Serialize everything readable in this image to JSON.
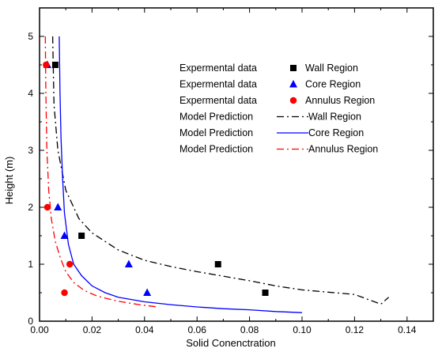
{
  "chart_data": {
    "type": "scatter",
    "xlabel": "Solid Conenctration",
    "ylabel": "Height (m)",
    "xlim": [
      0,
      0.15
    ],
    "ylim": [
      0,
      5.5
    ],
    "x_ticks": [
      "0.00",
      "0.02",
      "0.04",
      "0.06",
      "0.08",
      "0.10",
      "0.12",
      "0.14"
    ],
    "y_ticks": [
      "0",
      "1",
      "2",
      "3",
      "4",
      "5"
    ],
    "grid": false,
    "legend_position": "top-right",
    "series": [
      {
        "name": "Wall Region",
        "legend_label": "Expermental data",
        "kind": "marker",
        "marker": "square",
        "color": "#000000",
        "x": [
          0.006,
          0.016,
          0.068,
          0.086
        ],
        "y": [
          4.5,
          1.5,
          1.0,
          0.5
        ]
      },
      {
        "name": "Core Region",
        "legend_label": "Expermental data",
        "kind": "marker",
        "marker": "triangle",
        "color": "#0000ff",
        "x": [
          0.003,
          0.007,
          0.0095,
          0.034,
          0.041
        ],
        "y": [
          4.5,
          2.0,
          1.5,
          1.0,
          0.5
        ]
      },
      {
        "name": "Annulus Region",
        "legend_label": "Expermental data",
        "kind": "marker",
        "marker": "circle",
        "color": "#ff0000",
        "x": [
          0.0025,
          0.003,
          0.0115,
          0.0095
        ],
        "y": [
          4.5,
          2.0,
          1.0,
          0.5
        ]
      },
      {
        "name": "Wall Region",
        "legend_label": "Model Prediction",
        "kind": "line",
        "dash": "dash-dot",
        "color": "#000000",
        "x": [
          0.005,
          0.0055,
          0.007,
          0.01,
          0.015,
          0.02,
          0.03,
          0.04,
          0.05,
          0.06,
          0.07,
          0.08,
          0.09,
          0.1,
          0.11,
          0.12,
          0.13,
          0.133
        ],
        "y": [
          5.0,
          3.8,
          3.0,
          2.3,
          1.8,
          1.55,
          1.25,
          1.07,
          0.96,
          0.87,
          0.79,
          0.71,
          0.62,
          0.55,
          0.51,
          0.47,
          0.3,
          0.42
        ]
      },
      {
        "name": "Core Region",
        "legend_label": "Model Prediction",
        "kind": "line",
        "dash": "dash-dot",
        "color": "#0000ff",
        "x": [
          0.0075,
          0.0078,
          0.0082,
          0.0088,
          0.0095,
          0.011,
          0.013,
          0.016,
          0.02,
          0.025,
          0.03,
          0.04,
          0.05,
          0.06,
          0.07,
          0.08,
          0.09,
          0.1
        ],
        "y": [
          5.0,
          4.0,
          3.2,
          2.5,
          1.9,
          1.35,
          1.0,
          0.8,
          0.62,
          0.5,
          0.42,
          0.34,
          0.29,
          0.25,
          0.22,
          0.2,
          0.17,
          0.15
        ]
      },
      {
        "name": "Annulus Region",
        "legend_label": "Model Prediction",
        "kind": "line",
        "dash": "dash-dot",
        "color": "#ff0000",
        "x": [
          0.0022,
          0.0024,
          0.0028,
          0.0035,
          0.0045,
          0.006,
          0.008,
          0.01,
          0.013,
          0.017,
          0.022,
          0.03,
          0.038,
          0.045
        ],
        "y": [
          5.0,
          4.0,
          3.0,
          2.3,
          1.8,
          1.4,
          1.1,
          0.87,
          0.68,
          0.54,
          0.44,
          0.35,
          0.29,
          0.25
        ]
      }
    ]
  }
}
